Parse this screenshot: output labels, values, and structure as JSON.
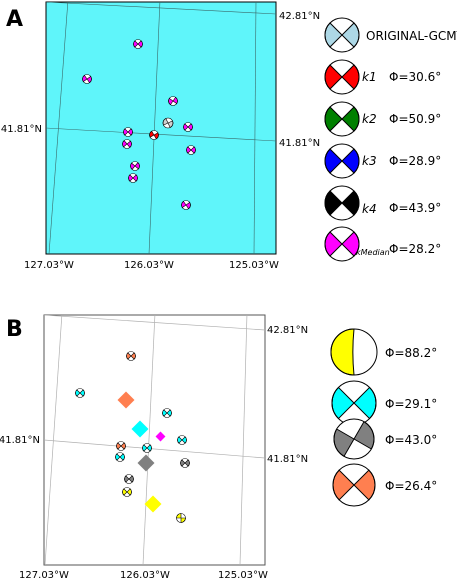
{
  "colors": {
    "map_a_ocean": "#5ff5fa",
    "map_b_background": "#ffffff",
    "k1": "#ff0000",
    "k2": "#008000",
    "k3": "#0000ff",
    "k4": "#000000",
    "kmedian": "#ff00ff",
    "original": "#add8e6",
    "cluster_yellow": "#ffff00",
    "cluster_cyan": "#00ffff",
    "cluster_gray": "#808080",
    "cluster_orange": "#ff7f50"
  },
  "panel_a": {
    "label": "A",
    "lat_top": "42.81°N",
    "lat_mid_left": "41.81°N",
    "lat_mid_right": "41.81°N",
    "lon_left": "127.03°W",
    "lon_mid": "126.03°W",
    "lon_right": "125.03°W",
    "legend": [
      {
        "label": "ORIGINAL-GCMT",
        "italic": false,
        "phi": "",
        "color_key": "original"
      },
      {
        "label": "k1",
        "italic": true,
        "phi": "Φ=30.6°",
        "color_key": "k1"
      },
      {
        "label": "k2",
        "italic": true,
        "phi": "Φ=50.9°",
        "color_key": "k2"
      },
      {
        "label": "k3",
        "italic": true,
        "phi": "Φ=28.9°",
        "color_key": "k3"
      },
      {
        "label": "k4",
        "italic": true,
        "phi": "Φ=43.9°",
        "color_key": "k4"
      },
      {
        "label": "kMedian",
        "italic": true,
        "phi": "Φ=28.2°",
        "color_key": "kmedian"
      }
    ]
  },
  "panel_b": {
    "label": "B",
    "lat_top": "42.81°N",
    "lat_mid_left": "41.81°N",
    "lat_mid_right": "41.81°N",
    "lon_left": "127.03°W",
    "lon_mid": "126.03°W",
    "lon_right": "125.03°W",
    "legend": [
      {
        "phi": "Φ=88.2°",
        "color_key": "cluster_yellow"
      },
      {
        "phi": "Φ=29.1°",
        "color_key": "cluster_cyan"
      },
      {
        "phi": "Φ=43.0°",
        "color_key": "cluster_gray"
      },
      {
        "phi": "Φ=26.4°",
        "color_key": "cluster_orange"
      }
    ]
  }
}
